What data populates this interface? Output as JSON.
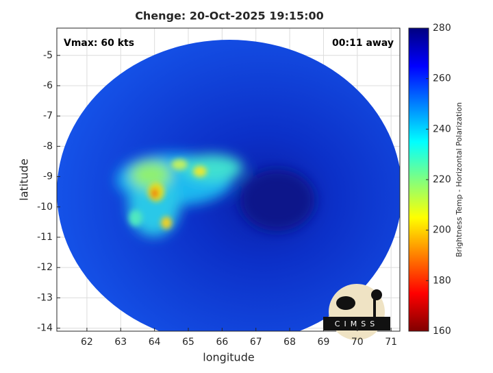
{
  "chart_data": {
    "type": "heatmap",
    "title": "Chenge: 20-Oct-2025 19:15:00",
    "annotations": [
      "Vmax: 60 kts",
      "00:11 away"
    ],
    "xlabel": "longitude",
    "ylabel": "latitude",
    "xlim": [
      61.11,
      71.26
    ],
    "ylim": [
      -14.1,
      -4.1
    ],
    "xticks": [
      62,
      63,
      64,
      65,
      66,
      67,
      68,
      69,
      70,
      71
    ],
    "yticks": [
      -5,
      -6,
      -7,
      -8,
      -9,
      -10,
      -11,
      -12,
      -13,
      -14
    ],
    "grid": true,
    "colorbar": {
      "label": "Brightness Temp - Horizontal Polarization",
      "lim": [
        160,
        280
      ],
      "ticks": [
        160,
        180,
        200,
        220,
        240,
        260,
        280
      ],
      "colormap": "jet"
    },
    "logo": "CIMSS"
  }
}
